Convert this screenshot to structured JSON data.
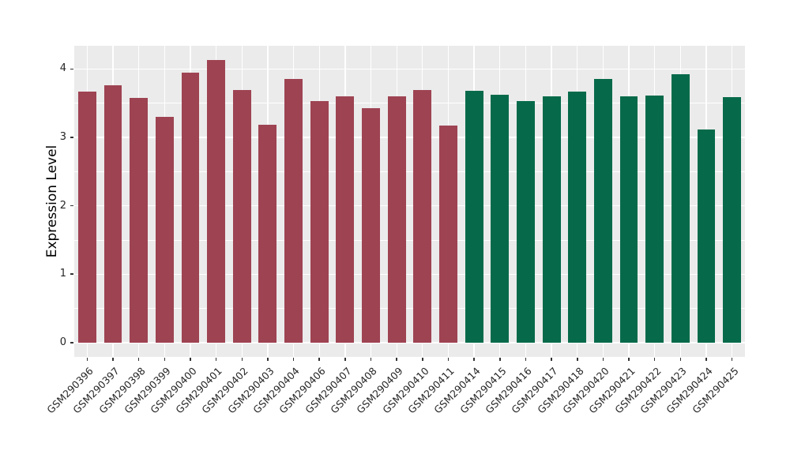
{
  "figure": {
    "background": "#FFFFFF",
    "panel_background": "#EBEBEB",
    "grid_color": "#FFFFFF",
    "tick_color": "#333333",
    "axis_text_color": "#262626"
  },
  "chart_data": {
    "type": "bar",
    "title": "",
    "xlabel": "",
    "ylabel": "Expression Level",
    "legend_position": "none",
    "grid": "major-and-minor-horizontal, major-vertical-at-categories",
    "yticks": [
      0,
      1,
      2,
      3,
      4
    ],
    "ylim": [
      0,
      4.13
    ],
    "ylim_display": [
      -0.21,
      4.34
    ],
    "bar_width_fraction": 0.7,
    "categories": [
      "GSM290396",
      "GSM290397",
      "GSM290398",
      "GSM290399",
      "GSM290400",
      "GSM290401",
      "GSM290402",
      "GSM290403",
      "GSM290404",
      "GSM290406",
      "GSM290407",
      "GSM290408",
      "GSM290409",
      "GSM290410",
      "GSM290411",
      "GSM290414",
      "GSM290415",
      "GSM290416",
      "GSM290417",
      "GSM290418",
      "GSM290420",
      "GSM290421",
      "GSM290422",
      "GSM290423",
      "GSM290424",
      "GSM290425"
    ],
    "values": [
      3.67,
      3.76,
      3.58,
      3.3,
      3.95,
      4.13,
      3.69,
      3.18,
      3.85,
      3.53,
      3.6,
      3.43,
      3.6,
      3.69,
      3.17,
      3.68,
      3.62,
      3.53,
      3.6,
      3.67,
      3.86,
      3.6,
      3.61,
      3.93,
      3.12,
      3.59
    ],
    "bar_groups": [
      "groupA",
      "groupA",
      "groupA",
      "groupA",
      "groupA",
      "groupA",
      "groupA",
      "groupA",
      "groupA",
      "groupA",
      "groupA",
      "groupA",
      "groupA",
      "groupA",
      "groupA",
      "groupB",
      "groupB",
      "groupB",
      "groupB",
      "groupB",
      "groupB",
      "groupB",
      "groupB",
      "groupB",
      "groupB",
      "groupB"
    ],
    "group_colors": {
      "groupA": "#9E4352",
      "groupB": "#066A4A"
    }
  }
}
